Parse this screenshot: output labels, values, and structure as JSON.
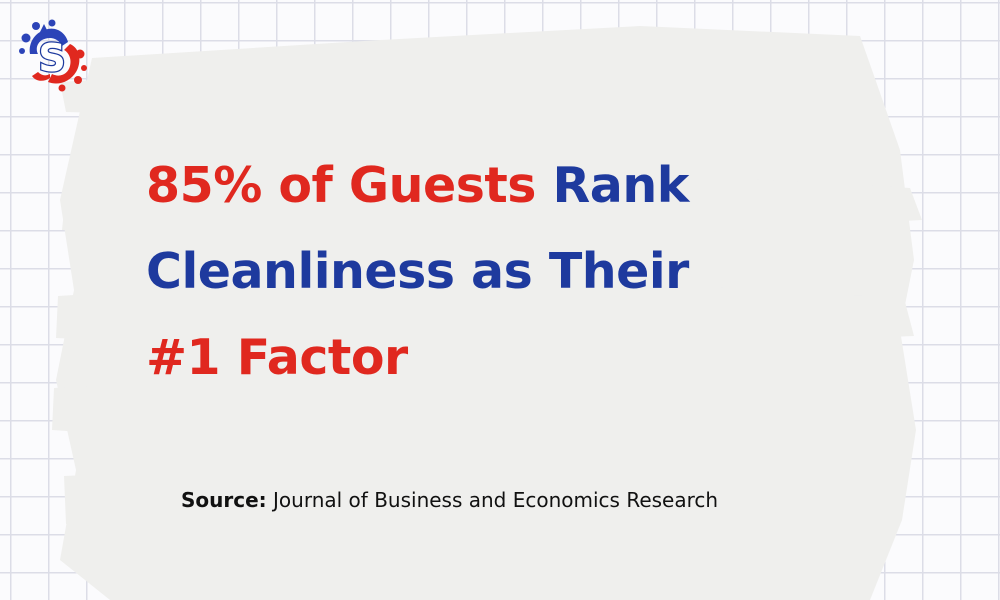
{
  "logo": {
    "letter": "S"
  },
  "headline": {
    "line1_red": "85% of Guests",
    "line1_blue": "Rank",
    "line2_blue": "Cleanliness as Their",
    "line3_red": "#1 Factor"
  },
  "source": {
    "label": "Source:",
    "text": "Journal of Business and Economics Research"
  },
  "colors": {
    "accent_red": "#e0281f",
    "accent_blue": "#1e3a9e",
    "brush_gray": "#efefed",
    "grid_line": "#dcdde7"
  }
}
